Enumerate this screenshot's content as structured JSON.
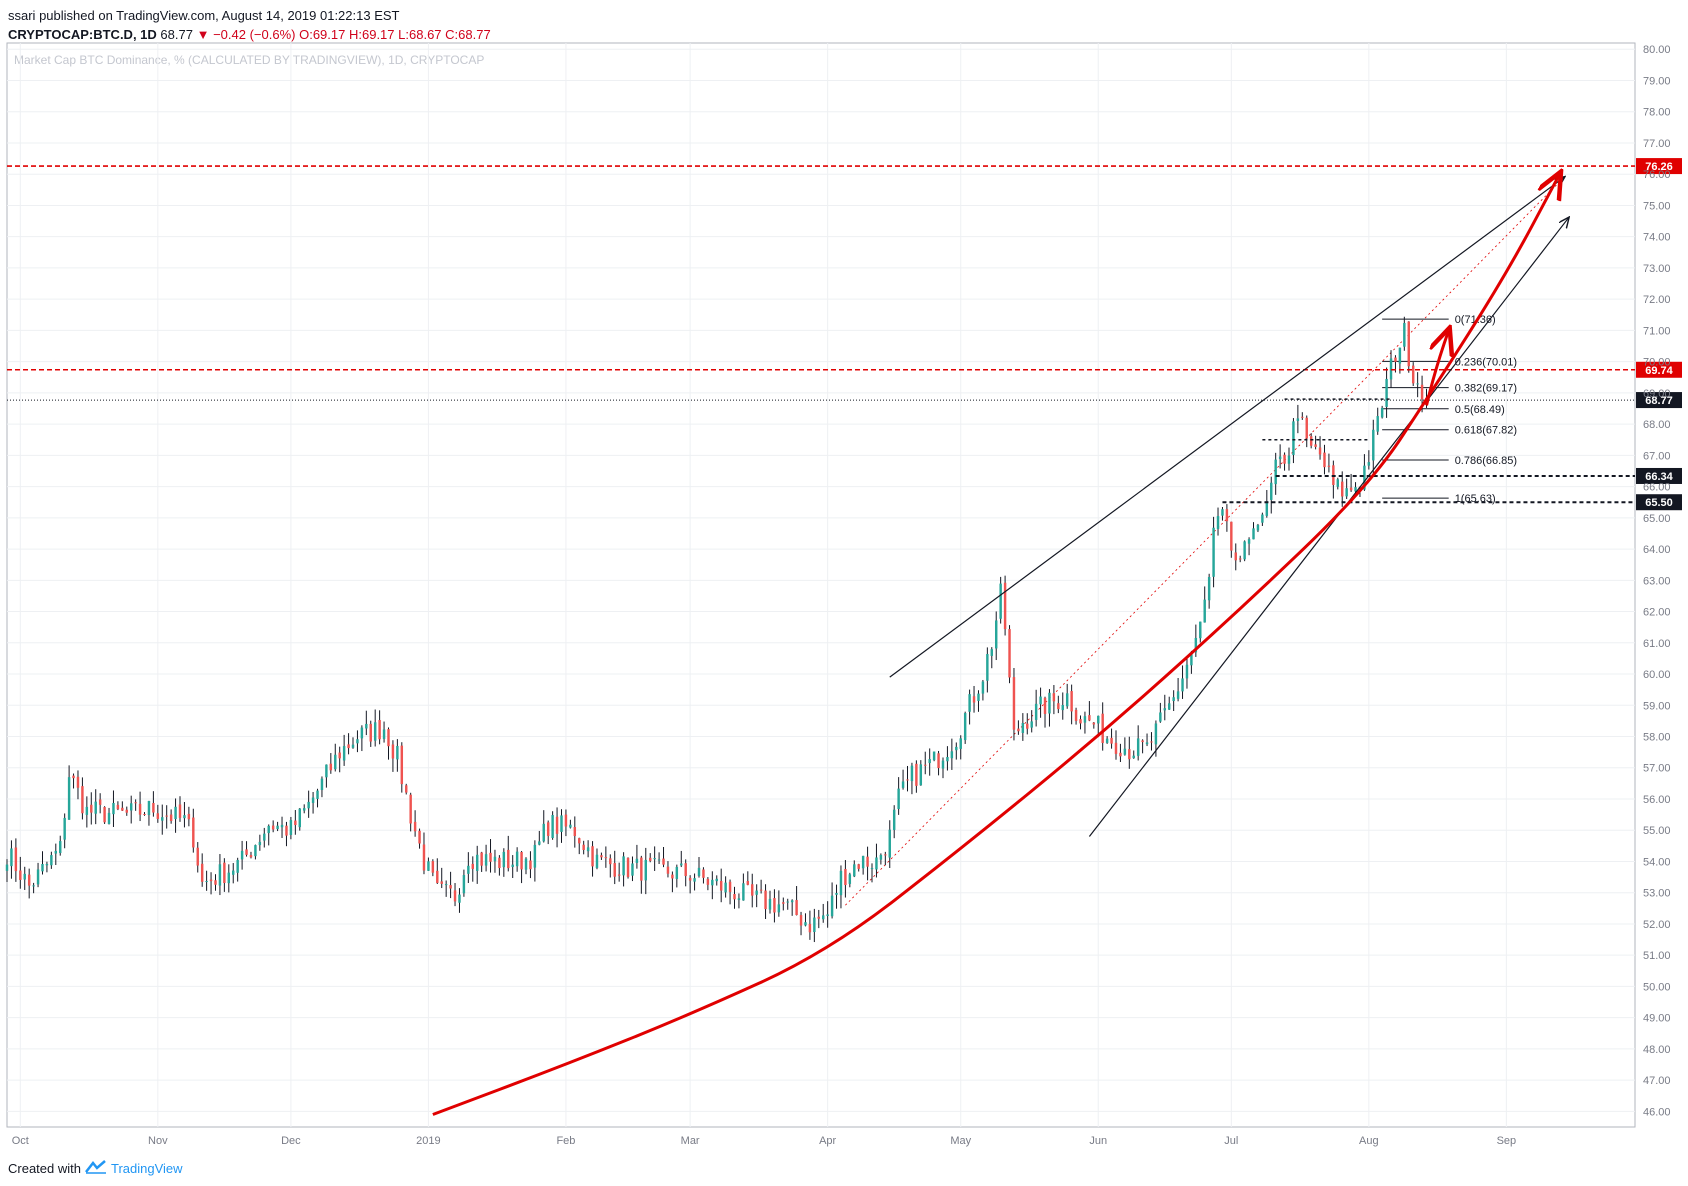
{
  "header": {
    "author": "ssari",
    "published_line": "published on TradingView.com, August 14, 2019 01:22:13 EST",
    "symbol": "CRYPTOCAP:BTC.D, 1D",
    "last": "68.77",
    "change": "▼ −0.42 (−0.6%)",
    "open": "O:69.17",
    "high": "H:69.17",
    "low": "L:68.67",
    "close": "C:68.77"
  },
  "footer": {
    "created_with": "Created with",
    "brand": "TradingView"
  },
  "colors": {
    "up": "#26a69a",
    "down": "#ef5350",
    "curve": "#e00000",
    "level_red": "#e00000",
    "text": "#131722"
  },
  "chart_data": {
    "type": "candlestick",
    "title": "Market Cap BTC Dominance, % (CALCULATED BY TRADINGVIEW), 1D, CRYPTOCAP",
    "ylim": [
      45.5,
      80.2
    ],
    "y_ticks": [
      46,
      47,
      48,
      49,
      50,
      51,
      52,
      53,
      54,
      55,
      56,
      57,
      58,
      59,
      60,
      61,
      62,
      63,
      64,
      65,
      66,
      67,
      68,
      69,
      70,
      71,
      72,
      73,
      74,
      75,
      76,
      77,
      78,
      79,
      80
    ],
    "x_ticks": [
      {
        "label": "Oct",
        "date": "2018-10-01"
      },
      {
        "label": "Nov",
        "date": "2018-11-01"
      },
      {
        "label": "Dec",
        "date": "2018-12-01"
      },
      {
        "label": "2019",
        "date": "2019-01-01"
      },
      {
        "label": "Feb",
        "date": "2019-02-01"
      },
      {
        "label": "Mar",
        "date": "2019-03-01"
      },
      {
        "label": "Apr",
        "date": "2019-04-01"
      },
      {
        "label": "May",
        "date": "2019-05-01"
      },
      {
        "label": "Jun",
        "date": "2019-06-01"
      },
      {
        "label": "Jul",
        "date": "2019-07-01"
      },
      {
        "label": "Aug",
        "date": "2019-08-01"
      },
      {
        "label": "Sep",
        "date": "2019-09-01"
      }
    ],
    "xlim": [
      "2018-09-28",
      "2019-09-30"
    ],
    "close_anchors": [
      [
        "2018-09-28",
        54.3
      ],
      [
        "2018-10-03",
        53.2
      ],
      [
        "2018-10-10",
        54.4
      ],
      [
        "2018-10-12",
        56.8
      ],
      [
        "2018-10-16",
        55.6
      ],
      [
        "2018-10-25",
        55.5
      ],
      [
        "2018-10-31",
        55.7
      ],
      [
        "2018-11-05",
        55.4
      ],
      [
        "2018-11-07",
        55.3
      ],
      [
        "2018-11-09",
        54.8
      ],
      [
        "2018-11-11",
        53.3
      ],
      [
        "2018-11-14",
        53.5
      ],
      [
        "2018-11-20",
        54.0
      ],
      [
        "2018-11-26",
        55.2
      ],
      [
        "2018-12-01",
        55.0
      ],
      [
        "2018-12-05",
        55.8
      ],
      [
        "2018-12-08",
        56.5
      ],
      [
        "2018-12-12",
        57.5
      ],
      [
        "2018-12-16",
        58.0
      ],
      [
        "2018-12-22",
        58.3
      ],
      [
        "2018-12-25",
        57.3
      ],
      [
        "2018-12-28",
        55.5
      ],
      [
        "2018-12-31",
        54.0
      ],
      [
        "2019-01-03",
        53.0
      ],
      [
        "2019-01-07",
        52.9
      ],
      [
        "2019-01-10",
        54.2
      ],
      [
        "2019-01-15",
        54.0
      ],
      [
        "2019-01-21",
        54.0
      ],
      [
        "2019-01-25",
        54.2
      ],
      [
        "2019-01-28",
        55.2
      ],
      [
        "2019-02-03",
        55.0
      ],
      [
        "2019-02-08",
        54.0
      ],
      [
        "2019-02-15",
        53.8
      ],
      [
        "2019-02-22",
        53.7
      ],
      [
        "2019-03-01",
        53.6
      ],
      [
        "2019-03-08",
        53.2
      ],
      [
        "2019-03-15",
        52.8
      ],
      [
        "2019-03-22",
        52.6
      ],
      [
        "2019-03-28",
        52.0
      ],
      [
        "2019-04-01",
        52.3
      ],
      [
        "2019-04-04",
        53.5
      ],
      [
        "2019-04-08",
        54.0
      ],
      [
        "2019-04-12",
        54.0
      ],
      [
        "2019-04-15",
        54.8
      ],
      [
        "2019-04-17",
        56.0
      ],
      [
        "2019-04-20",
        56.7
      ],
      [
        "2019-04-25",
        57.2
      ],
      [
        "2019-04-30",
        58.0
      ],
      [
        "2019-05-03",
        59.0
      ],
      [
        "2019-05-06",
        60.0
      ],
      [
        "2019-05-08",
        61.0
      ],
      [
        "2019-05-10",
        62.5
      ],
      [
        "2019-05-11",
        61.5
      ],
      [
        "2019-05-13",
        58.0
      ],
      [
        "2019-05-15",
        58.5
      ],
      [
        "2019-05-20",
        59.0
      ],
      [
        "2019-05-25",
        59.3
      ],
      [
        "2019-05-28",
        58.6
      ],
      [
        "2019-05-31",
        58.4
      ],
      [
        "2019-06-03",
        58.0
      ],
      [
        "2019-06-08",
        57.6
      ],
      [
        "2019-06-12",
        57.6
      ],
      [
        "2019-06-15",
        58.4
      ],
      [
        "2019-06-18",
        59.2
      ],
      [
        "2019-06-21",
        60.3
      ],
      [
        "2019-06-24",
        61.5
      ],
      [
        "2019-06-26",
        63.0
      ],
      [
        "2019-06-27",
        64.5
      ],
      [
        "2019-06-29",
        65.0
      ],
      [
        "2019-07-01",
        64.0
      ],
      [
        "2019-07-03",
        63.3
      ],
      [
        "2019-07-06",
        65.0
      ],
      [
        "2019-07-08",
        64.8
      ],
      [
        "2019-07-11",
        66.5
      ],
      [
        "2019-07-14",
        67.2
      ],
      [
        "2019-07-16",
        68.5
      ],
      [
        "2019-07-18",
        67.3
      ],
      [
        "2019-07-21",
        67.0
      ],
      [
        "2019-07-24",
        66.0
      ],
      [
        "2019-07-27",
        65.8
      ],
      [
        "2019-07-30",
        66.2
      ],
      [
        "2019-08-01",
        67.0
      ],
      [
        "2019-08-03",
        68.0
      ],
      [
        "2019-08-05",
        69.3
      ],
      [
        "2019-08-07",
        70.3
      ],
      [
        "2019-08-09",
        70.9
      ],
      [
        "2019-08-11",
        69.6
      ],
      [
        "2019-08-13",
        69.17
      ],
      [
        "2019-08-14",
        68.77
      ]
    ],
    "fibonacci": [
      {
        "label": "0(71.36)",
        "value": 71.36
      },
      {
        "label": "0.236(70.01)",
        "value": 70.01
      },
      {
        "label": "0.382(69.17)",
        "value": 69.17
      },
      {
        "label": "0.5(68.49)",
        "value": 68.49
      },
      {
        "label": "0.618(67.82)",
        "value": 67.82
      },
      {
        "label": "0.786(66.85)",
        "value": 66.85
      },
      {
        "label": "1(65.63)",
        "value": 65.63
      }
    ],
    "levels": [
      {
        "label": "76.26",
        "value": 76.26,
        "style": "red-dashed"
      },
      {
        "label": "69.74",
        "value": 69.74,
        "style": "red-dashed"
      },
      {
        "label": "68.77",
        "value": 68.77,
        "style": "last-price"
      },
      {
        "label": "66.34",
        "value": 66.34,
        "style": "black-dashed"
      },
      {
        "label": "65.50",
        "value": 65.5,
        "style": "black-dashed"
      }
    ],
    "trendlines": [
      {
        "from": [
          "2019-04-15",
          59.9
        ],
        "to": [
          "2019-09-14",
          75.9
        ],
        "color": "#131722",
        "arrow": true
      },
      {
        "from": [
          "2019-05-30",
          54.8
        ],
        "to": [
          "2019-09-15",
          74.6
        ],
        "color": "#131722",
        "arrow": true
      }
    ],
    "curve": [
      [
        "2019-01-02",
        45.9
      ],
      [
        "2019-02-01",
        47.5
      ],
      [
        "2019-03-01",
        49.1
      ],
      [
        "2019-04-01",
        51.1
      ],
      [
        "2019-05-01",
        54.4
      ],
      [
        "2019-06-01",
        58.0
      ],
      [
        "2019-07-01",
        61.8
      ],
      [
        "2019-08-01",
        66.0
      ],
      [
        "2019-08-15",
        69.0
      ],
      [
        "2019-09-01",
        72.8
      ],
      [
        "2019-09-13",
        76.0
      ]
    ]
  }
}
